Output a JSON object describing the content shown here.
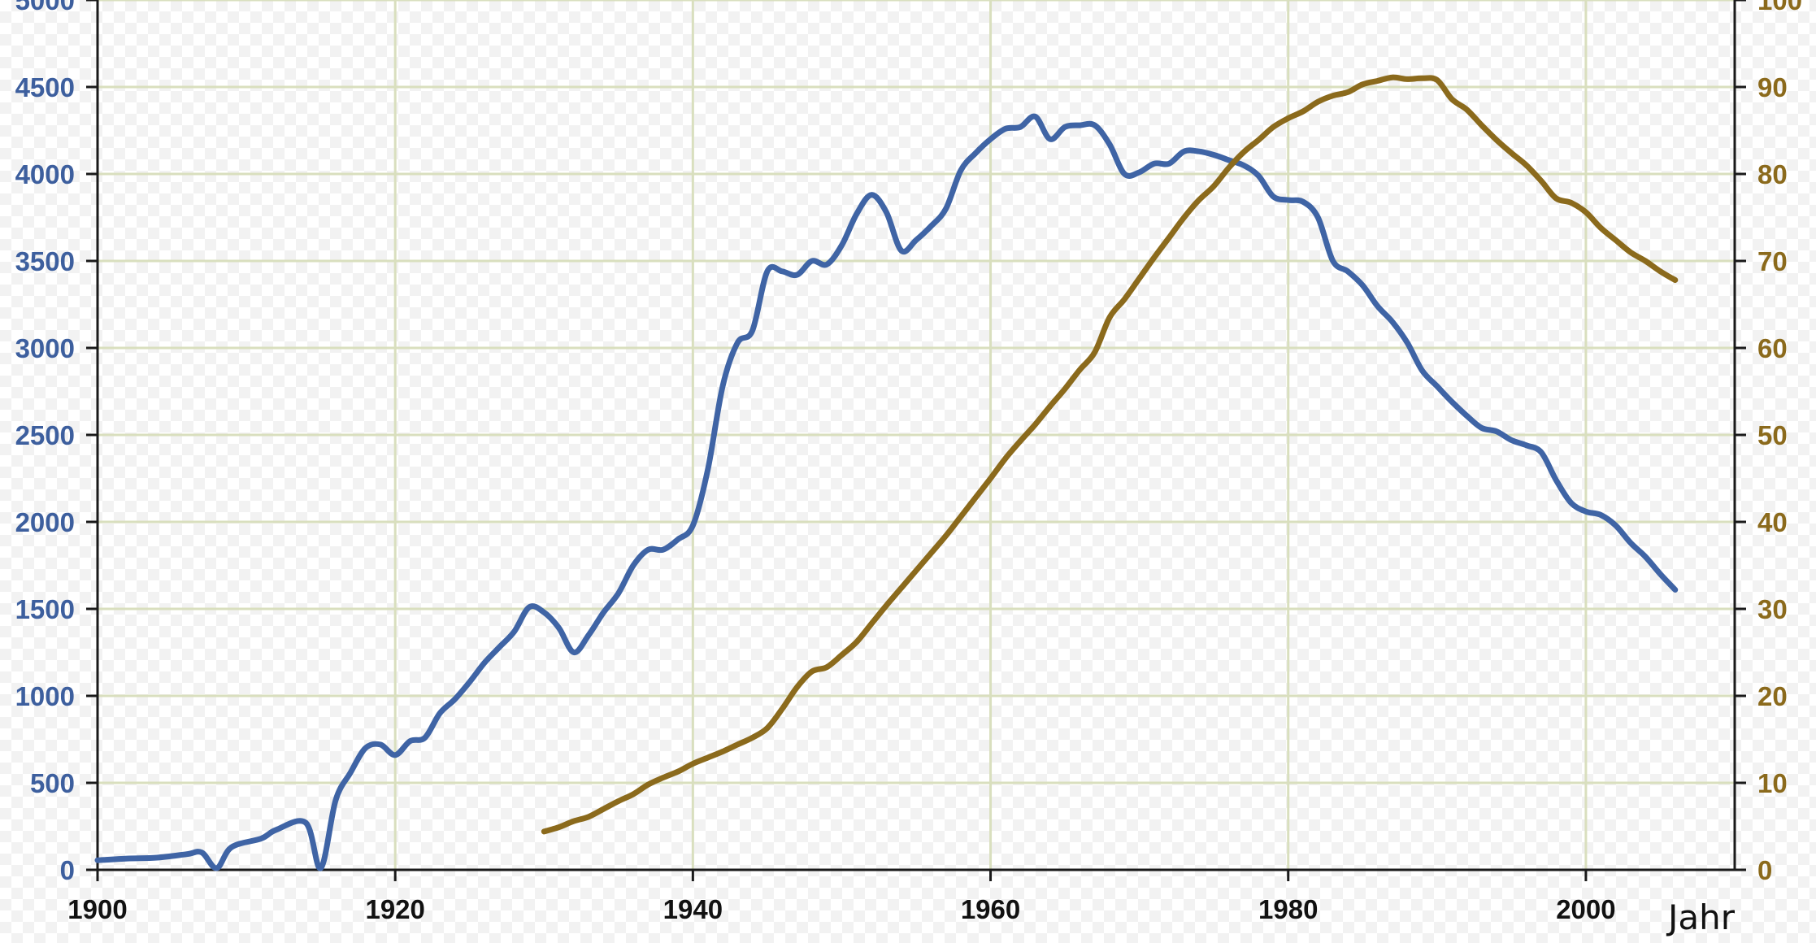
{
  "chart_data": {
    "type": "line",
    "title": "",
    "xlabel": "Jahr",
    "ylabel": "",
    "y2label": "",
    "x_ticks": [
      "1900",
      "1920",
      "1940",
      "1960",
      "1980",
      "2000"
    ],
    "y_ticks": [
      "0",
      "500",
      "1000",
      "1500",
      "2000",
      "2500",
      "3000",
      "3500",
      "4000",
      "4500",
      "5000"
    ],
    "y2_ticks": [
      "0",
      "10",
      "20",
      "30",
      "40",
      "50",
      "60",
      "70",
      "80",
      "90",
      "100"
    ],
    "xlim": [
      1900,
      2010
    ],
    "ylim": [
      0,
      5000
    ],
    "y2lim": [
      0,
      100
    ],
    "grid": true,
    "colors": {
      "left_series": "#3f64a5",
      "right_series": "#8b6a1c",
      "grid": "#d9dfbe",
      "axis": "#1a1a1a"
    },
    "series": [
      {
        "axis": "left",
        "x": [
          1900,
          1902,
          1904,
          1906,
          1907,
          1908,
          1909,
          1911,
          1912,
          1914,
          1915,
          1916,
          1917,
          1918,
          1919,
          1920,
          1921,
          1922,
          1923,
          1924,
          1925,
          1926,
          1927,
          1928,
          1929,
          1930,
          1931,
          1932,
          1933,
          1934,
          1935,
          1936,
          1937,
          1938,
          1939,
          1940,
          1941,
          1942,
          1943,
          1944,
          1945,
          1946,
          1947,
          1948,
          1949,
          1950,
          1951,
          1952,
          1953,
          1954,
          1955,
          1956,
          1957,
          1958,
          1959,
          1960,
          1961,
          1962,
          1963,
          1964,
          1965,
          1966,
          1967,
          1968,
          1969,
          1970,
          1971,
          1972,
          1973,
          1974,
          1975,
          1976,
          1977,
          1978,
          1979,
          1980,
          1981,
          1982,
          1983,
          1984,
          1985,
          1986,
          1987,
          1988,
          1989,
          1990,
          1991,
          1992,
          1993,
          1994,
          1995,
          1996,
          1997,
          1998,
          1999,
          2000,
          2001,
          2002,
          2003,
          2004,
          2005,
          2006
        ],
        "values": [
          55,
          65,
          70,
          90,
          100,
          10,
          130,
          180,
          230,
          270,
          10,
          400,
          560,
          700,
          720,
          660,
          740,
          760,
          900,
          980,
          1080,
          1190,
          1280,
          1370,
          1510,
          1480,
          1390,
          1250,
          1350,
          1480,
          1590,
          1750,
          1840,
          1840,
          1900,
          1980,
          2300,
          2780,
          3030,
          3100,
          3440,
          3440,
          3420,
          3500,
          3480,
          3590,
          3770,
          3880,
          3780,
          3560,
          3620,
          3700,
          3800,
          4020,
          4120,
          4200,
          4260,
          4270,
          4330,
          4200,
          4270,
          4280,
          4280,
          4170,
          4000,
          4010,
          4060,
          4060,
          4130,
          4130,
          4110,
          4080,
          4050,
          3990,
          3870,
          3850,
          3840,
          3750,
          3500,
          3440,
          3360,
          3240,
          3150,
          3030,
          2870,
          2780,
          2690,
          2610,
          2540,
          2520,
          2470,
          2440,
          2400,
          2240,
          2110,
          2060,
          2040,
          1980,
          1880,
          1800,
          1700,
          1610
        ]
      },
      {
        "axis": "right",
        "x": [
          1930,
          1931,
          1932,
          1933,
          1934,
          1935,
          1936,
          1937,
          1938,
          1939,
          1940,
          1941,
          1942,
          1943,
          1944,
          1945,
          1946,
          1947,
          1948,
          1949,
          1950,
          1951,
          1952,
          1953,
          1954,
          1955,
          1956,
          1957,
          1958,
          1959,
          1960,
          1961,
          1962,
          1963,
          1964,
          1965,
          1966,
          1967,
          1968,
          1969,
          1970,
          1971,
          1972,
          1973,
          1974,
          1975,
          1976,
          1977,
          1978,
          1979,
          1980,
          1981,
          1982,
          1983,
          1984,
          1985,
          1986,
          1987,
          1988,
          1989,
          1990,
          1991,
          1992,
          1993,
          1994,
          1995,
          1996,
          1997,
          1998,
          1999,
          2000,
          2001,
          2002,
          2003,
          2004,
          2005,
          2006
        ],
        "values": [
          4.4,
          4.9,
          5.6,
          6.1,
          7.0,
          7.9,
          8.7,
          9.8,
          10.6,
          11.3,
          12.2,
          12.9,
          13.6,
          14.4,
          15.2,
          16.3,
          18.5,
          21.0,
          22.8,
          23.3,
          24.7,
          26.2,
          28.3,
          30.4,
          32.4,
          34.4,
          36.4,
          38.4,
          40.6,
          42.8,
          45.0,
          47.3,
          49.3,
          51.2,
          53.3,
          55.3,
          57.5,
          59.5,
          63.5,
          65.6,
          68.0,
          70.4,
          72.7,
          75.0,
          77.0,
          78.6,
          80.7,
          82.5,
          83.9,
          85.4,
          86.4,
          87.2,
          88.3,
          89.0,
          89.4,
          90.3,
          90.7,
          91.1,
          90.9,
          91.0,
          90.8,
          88.6,
          87.4,
          85.6,
          83.9,
          82.4,
          81.0,
          79.2,
          77.2,
          76.7,
          75.6,
          73.8,
          72.4,
          71.0,
          70.0,
          68.8,
          67.8
        ]
      }
    ]
  }
}
